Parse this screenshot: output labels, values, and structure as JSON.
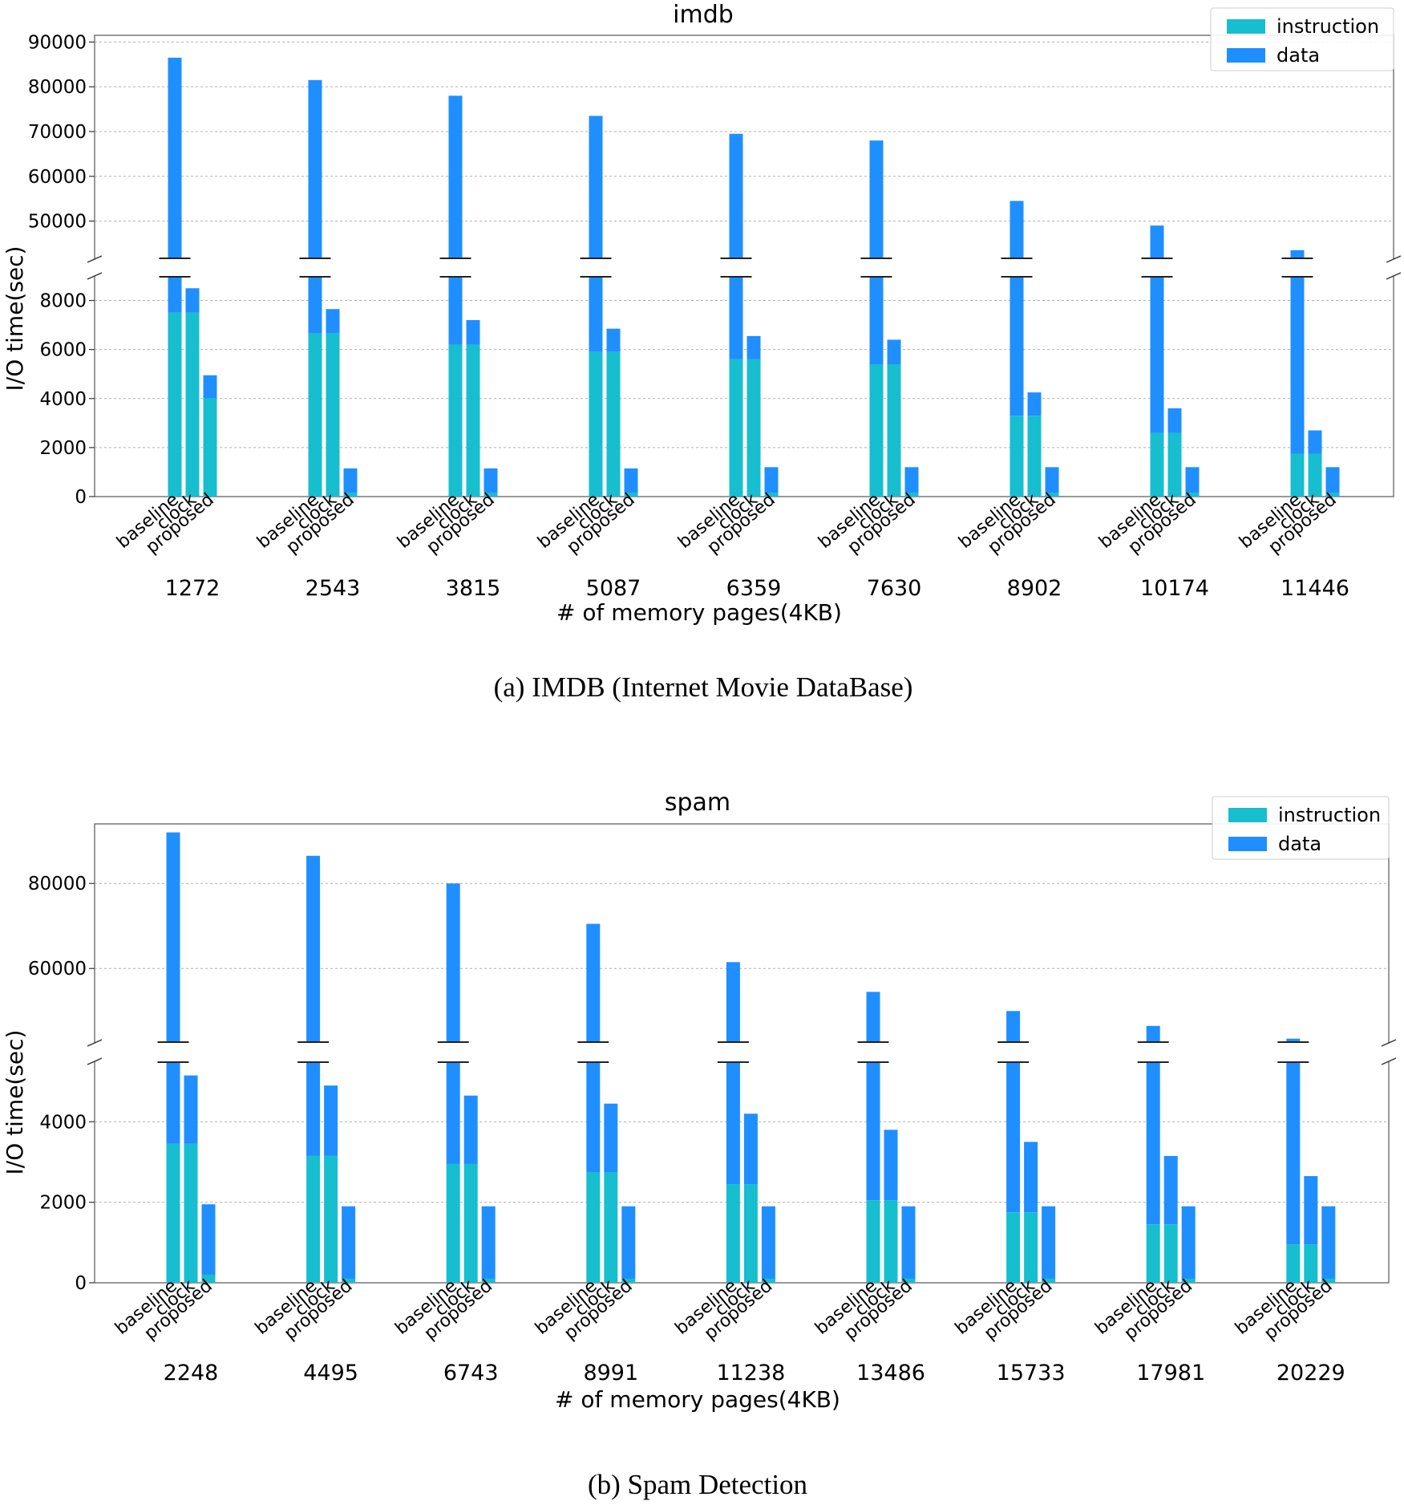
{
  "chart_data": [
    {
      "type": "bar",
      "stacked": true,
      "broken_y_axis": true,
      "title": "imdb",
      "caption": "(a) IMDB (Internet Movie DataBase)",
      "xlabel": "# of memory pages(4KB)",
      "ylabel": "I/O time(sec)",
      "categories": [
        "1272",
        "2543",
        "3815",
        "5087",
        "6359",
        "7630",
        "8902",
        "10174",
        "11446"
      ],
      "methods": [
        "baseline",
        "clock",
        "proposed"
      ],
      "legend": [
        "instruction",
        "data"
      ],
      "colors": {
        "instruction": "#17becf",
        "data": "#1f8fff"
      },
      "ylim_lower": [
        0,
        9000
      ],
      "ylim_upper": [
        41500,
        91500
      ],
      "yticks_lower": [
        "0",
        "2000",
        "4000",
        "6000",
        "8000"
      ],
      "yticks_upper": [
        "50000",
        "60000",
        "70000",
        "80000",
        "90000"
      ],
      "series": [
        {
          "name": "baseline",
          "instruction": [
            7500,
            6650,
            6200,
            5900,
            5600,
            5400,
            3300,
            2600,
            1750
          ],
          "total": [
            86500,
            81500,
            78000,
            73500,
            69500,
            68000,
            54500,
            49000,
            43500
          ]
        },
        {
          "name": "clock",
          "instruction": [
            7500,
            6650,
            6200,
            5900,
            5600,
            5400,
            3300,
            2600,
            1750
          ],
          "total": [
            8500,
            7650,
            7200,
            6850,
            6550,
            6400,
            4250,
            3600,
            2700
          ]
        },
        {
          "name": "proposed",
          "instruction": [
            4000,
            150,
            150,
            150,
            150,
            150,
            150,
            150,
            150
          ],
          "total": [
            4950,
            1150,
            1150,
            1150,
            1200,
            1200,
            1200,
            1200,
            1200
          ]
        }
      ]
    },
    {
      "type": "bar",
      "stacked": true,
      "broken_y_axis": true,
      "title": "spam",
      "caption": "(b) Spam Detection",
      "xlabel": "# of memory pages(4KB)",
      "ylabel": "I/O time(sec)",
      "categories": [
        "2248",
        "4495",
        "6743",
        "8991",
        "11238",
        "13486",
        "15733",
        "17981",
        "20229"
      ],
      "methods": [
        "baseline",
        "clock",
        "proposed"
      ],
      "legend": [
        "instruction",
        "data"
      ],
      "colors": {
        "instruction": "#17becf",
        "data": "#1f8fff"
      },
      "ylim_lower": [
        0,
        5500
      ],
      "ylim_upper": [
        42500,
        94000
      ],
      "yticks_lower": [
        "0",
        "2000",
        "4000"
      ],
      "yticks_upper": [
        "60000",
        "80000"
      ],
      "series": [
        {
          "name": "baseline",
          "instruction": [
            3450,
            3150,
            2950,
            2750,
            2450,
            2050,
            1750,
            1450,
            950
          ],
          "total": [
            92000,
            86500,
            80000,
            70500,
            61500,
            54500,
            50000,
            46500,
            43500
          ]
        },
        {
          "name": "clock",
          "instruction": [
            3450,
            3150,
            2950,
            2750,
            2450,
            2050,
            1750,
            1450,
            950
          ],
          "total": [
            5150,
            4900,
            4650,
            4450,
            4200,
            3800,
            3500,
            3150,
            2650
          ]
        },
        {
          "name": "proposed",
          "instruction": [
            200,
            100,
            100,
            100,
            100,
            100,
            100,
            100,
            100
          ],
          "total": [
            1950,
            1900,
            1900,
            1900,
            1900,
            1900,
            1900,
            1900,
            1900
          ]
        }
      ]
    }
  ]
}
